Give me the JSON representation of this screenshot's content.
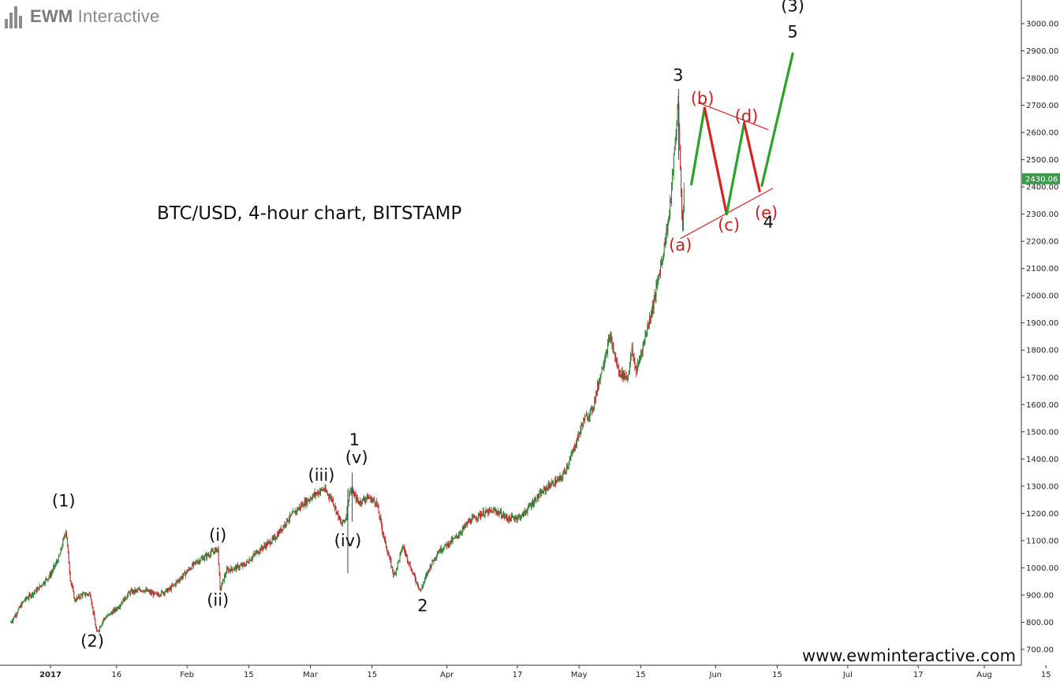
{
  "brand": {
    "name_bold": "EWM",
    "name_rest": " Interactive"
  },
  "website": "www.ewminteractive.com",
  "chart_data": {
    "type": "candlestick",
    "title": "BTC/USD, 4-hour chart, BITSTAMP",
    "timeframe": "4-hour",
    "exchange": "BITSTAMP",
    "symbol": "BTC/USD",
    "ylim": [
      650,
      3100
    ],
    "y_ticks": [
      "700.00",
      "800.00",
      "900.00",
      "1000.00",
      "1100.00",
      "1200.00",
      "1300.00",
      "1400.00",
      "1500.00",
      "1600.00",
      "1700.00",
      "1800.00",
      "1900.00",
      "2000.00",
      "2100.00",
      "2200.00",
      "2300.00",
      "2400.00",
      "2500.00",
      "2600.00",
      "2700.00",
      "2800.00",
      "2900.00",
      "3000.00"
    ],
    "x_ticks": [
      {
        "label": "2017",
        "day": 0,
        "bold": true
      },
      {
        "label": "16",
        "day": 15
      },
      {
        "label": "Feb",
        "day": 31
      },
      {
        "label": "15",
        "day": 45
      },
      {
        "label": "Mar",
        "day": 59
      },
      {
        "label": "15",
        "day": 73
      },
      {
        "label": "Apr",
        "day": 90
      },
      {
        "label": "17",
        "day": 106
      },
      {
        "label": "May",
        "day": 120
      },
      {
        "label": "15",
        "day": 134
      },
      {
        "label": "Jun",
        "day": 151
      },
      {
        "label": "15",
        "day": 165
      },
      {
        "label": "Jul",
        "day": 181
      },
      {
        "label": "17",
        "day": 197
      },
      {
        "label": "Aug",
        "day": 212
      },
      {
        "label": "15",
        "day": 226
      }
    ],
    "last_price": {
      "label": "2430.06",
      "value": 2430.06
    },
    "price_path": [
      {
        "day": -9,
        "price": 800
      },
      {
        "day": -6,
        "price": 880
      },
      {
        "day": -3,
        "price": 920
      },
      {
        "day": 0,
        "price": 975
      },
      {
        "day": 2,
        "price": 1040
      },
      {
        "day": 3.5,
        "price": 1140
      },
      {
        "day": 4.5,
        "price": 960
      },
      {
        "day": 5.5,
        "price": 880
      },
      {
        "day": 7,
        "price": 900
      },
      {
        "day": 9,
        "price": 905
      },
      {
        "day": 10.5,
        "price": 760
      },
      {
        "day": 12,
        "price": 810
      },
      {
        "day": 15,
        "price": 850
      },
      {
        "day": 18,
        "price": 910
      },
      {
        "day": 21,
        "price": 920
      },
      {
        "day": 24,
        "price": 900
      },
      {
        "day": 27,
        "price": 920
      },
      {
        "day": 30,
        "price": 970
      },
      {
        "day": 33,
        "price": 1020
      },
      {
        "day": 36,
        "price": 1050
      },
      {
        "day": 38,
        "price": 1070
      },
      {
        "day": 38.5,
        "price": 920
      },
      {
        "day": 40,
        "price": 990
      },
      {
        "day": 44,
        "price": 1010
      },
      {
        "day": 47,
        "price": 1060
      },
      {
        "day": 51,
        "price": 1110
      },
      {
        "day": 54,
        "price": 1180
      },
      {
        "day": 57,
        "price": 1230
      },
      {
        "day": 60,
        "price": 1270
      },
      {
        "day": 62,
        "price": 1290
      },
      {
        "day": 64,
        "price": 1250
      },
      {
        "day": 66,
        "price": 1160
      },
      {
        "day": 67,
        "price": 1180
      },
      {
        "day": 68,
        "price": 1290
      },
      {
        "day": 70,
        "price": 1240
      },
      {
        "day": 72,
        "price": 1260
      },
      {
        "day": 74,
        "price": 1240
      },
      {
        "day": 76,
        "price": 1090
      },
      {
        "day": 78,
        "price": 970
      },
      {
        "day": 80,
        "price": 1080
      },
      {
        "day": 82,
        "price": 990
      },
      {
        "day": 84,
        "price": 915
      },
      {
        "day": 86,
        "price": 1000
      },
      {
        "day": 88,
        "price": 1060
      },
      {
        "day": 92,
        "price": 1110
      },
      {
        "day": 95,
        "price": 1170
      },
      {
        "day": 98,
        "price": 1200
      },
      {
        "day": 101,
        "price": 1210
      },
      {
        "day": 104,
        "price": 1180
      },
      {
        "day": 107,
        "price": 1190
      },
      {
        "day": 110,
        "price": 1250
      },
      {
        "day": 113,
        "price": 1300
      },
      {
        "day": 116,
        "price": 1330
      },
      {
        "day": 118,
        "price": 1400
      },
      {
        "day": 121,
        "price": 1540
      },
      {
        "day": 123,
        "price": 1580
      },
      {
        "day": 125,
        "price": 1720
      },
      {
        "day": 127,
        "price": 1850
      },
      {
        "day": 129,
        "price": 1720
      },
      {
        "day": 131,
        "price": 1700
      },
      {
        "day": 132,
        "price": 1800
      },
      {
        "day": 133,
        "price": 1720
      },
      {
        "day": 135,
        "price": 1850
      },
      {
        "day": 137,
        "price": 1980
      },
      {
        "day": 139,
        "price": 2150
      },
      {
        "day": 140.5,
        "price": 2300
      },
      {
        "day": 142,
        "price": 2600
      },
      {
        "day": 142.5,
        "price": 2720
      },
      {
        "day": 143,
        "price": 2450
      },
      {
        "day": 143.5,
        "price": 2250
      },
      {
        "day": 144,
        "price": 2430
      }
    ],
    "spikes": [
      {
        "day": 68.5,
        "high": 1350,
        "low": 1170
      },
      {
        "day": 67.5,
        "high": 1290,
        "low": 980
      },
      {
        "day": 142.6,
        "high": 2760,
        "low": 2500
      }
    ],
    "wave_labels": [
      {
        "text": "(1)",
        "day": 3,
        "price": 1225,
        "color": "#111111"
      },
      {
        "text": "(2)",
        "day": 9.5,
        "price": 710,
        "color": "#111111"
      },
      {
        "text": "(i)",
        "day": 38,
        "price": 1100,
        "color": "#111111"
      },
      {
        "text": "(ii)",
        "day": 38,
        "price": 860,
        "color": "#111111"
      },
      {
        "text": "(iii)",
        "day": 61.5,
        "price": 1320,
        "color": "#111111"
      },
      {
        "text": "(iv)",
        "day": 67.5,
        "price": 1080,
        "color": "#111111"
      },
      {
        "text": "(v)",
        "day": 69.5,
        "price": 1385,
        "color": "#111111"
      },
      {
        "text": "1",
        "day": 69,
        "price": 1450,
        "color": "#111111"
      },
      {
        "text": "2",
        "day": 84.5,
        "price": 840,
        "color": "#111111"
      },
      {
        "text": "3",
        "day": 142.5,
        "price": 2790,
        "color": "#111111"
      },
      {
        "text": "(a)",
        "day": 143,
        "price": 2165,
        "color": "#cc1f1f"
      },
      {
        "text": "(b)",
        "day": 148,
        "price": 2705,
        "color": "#cc1f1f"
      },
      {
        "text": "(c)",
        "day": 154,
        "price": 2240,
        "color": "#cc1f1f"
      },
      {
        "text": "(d)",
        "day": 158,
        "price": 2640,
        "color": "#cc1f1f"
      },
      {
        "text": "(e)",
        "day": 162.5,
        "price": 2285,
        "color": "#cc1f1f"
      },
      {
        "text": "4",
        "day": 163,
        "price": 2250,
        "color": "#111111"
      },
      {
        "text": "5",
        "day": 168.5,
        "price": 2950,
        "color": "#111111"
      },
      {
        "text": "(3)",
        "day": 168.5,
        "price": 3045,
        "color": "#111111"
      }
    ],
    "projection": [
      {
        "from": {
          "day": 145.5,
          "price": 2410
        },
        "to": {
          "day": 148.5,
          "price": 2690
        },
        "color": "#29a329"
      },
      {
        "from": {
          "day": 148.5,
          "price": 2690
        },
        "to": {
          "day": 153.5,
          "price": 2300
        },
        "color": "#d62424"
      },
      {
        "from": {
          "day": 153.5,
          "price": 2300
        },
        "to": {
          "day": 157.5,
          "price": 2635
        },
        "color": "#29a329"
      },
      {
        "from": {
          "day": 157.5,
          "price": 2635
        },
        "to": {
          "day": 161,
          "price": 2385
        },
        "color": "#d62424"
      },
      {
        "from": {
          "day": 161.5,
          "price": 2405
        },
        "to": {
          "day": 168.5,
          "price": 2890
        },
        "color": "#29a329"
      }
    ],
    "triangle_lines": [
      {
        "from": {
          "day": 143,
          "price": 2210
        },
        "to": {
          "day": 164,
          "price": 2395
        },
        "color": "#d62424"
      },
      {
        "from": {
          "day": 147,
          "price": 2710
        },
        "to": {
          "day": 163,
          "price": 2610
        },
        "color": "#d62424"
      }
    ]
  }
}
